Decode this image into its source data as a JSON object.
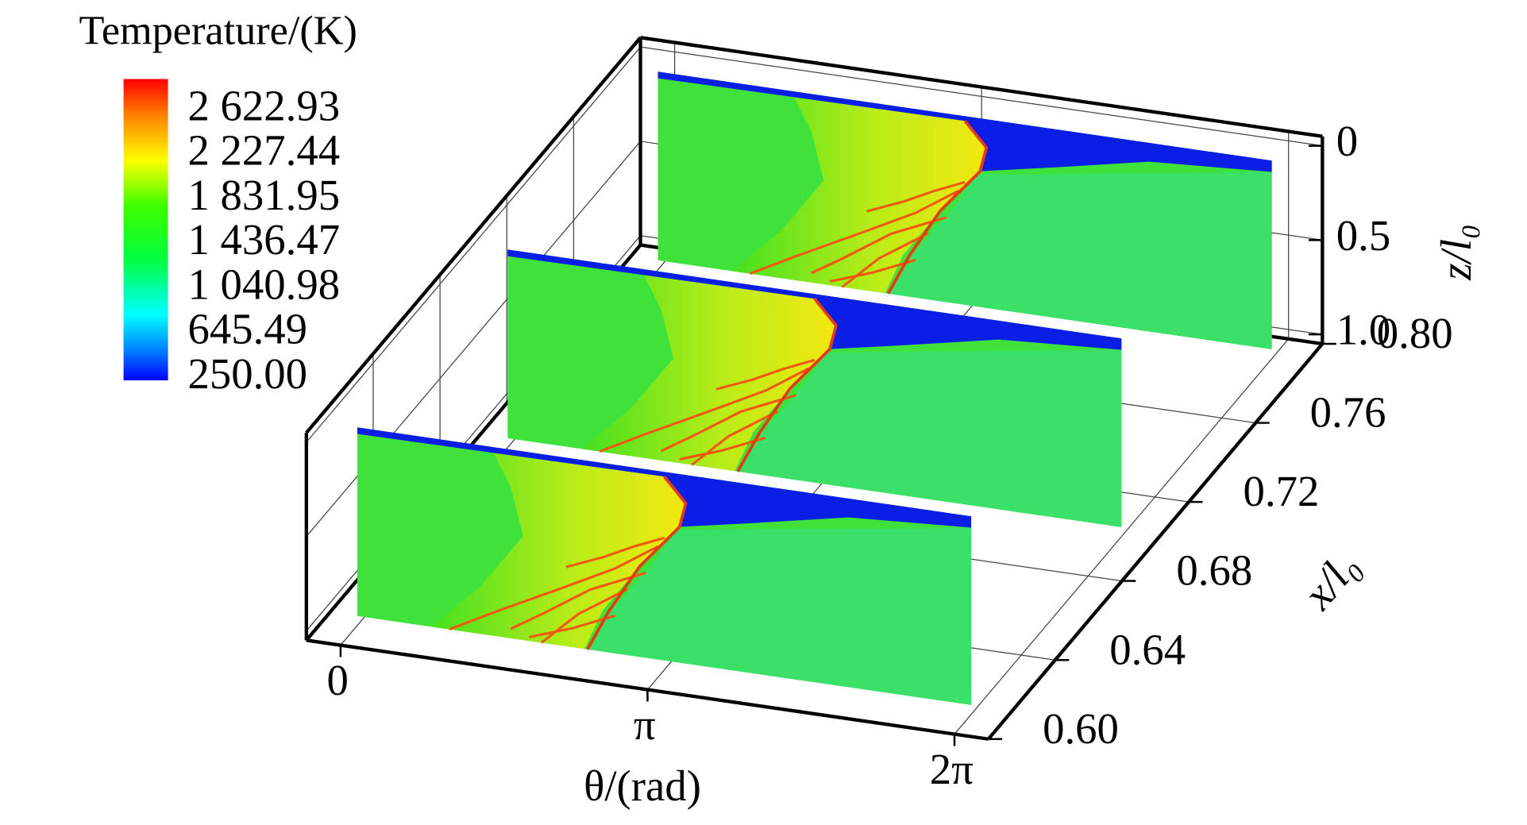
{
  "chart_data": {
    "type": "slices3d",
    "colorbar_title": "Temperature/(K)",
    "colorbar_lim": [
      230,
      2900
    ],
    "colorbar_ticks": [
      {
        "value": 2622.93,
        "label": "2 622.93"
      },
      {
        "value": 2227.44,
        "label": "2 227.44"
      },
      {
        "value": 1831.95,
        "label": "1 831.95"
      },
      {
        "value": 1436.47,
        "label": "1 436.47"
      },
      {
        "value": 1040.98,
        "label": "1 040.98"
      },
      645.49,
      {
        "value": 250,
        "label": "250.00"
      }
    ],
    "theta_label": "θ/(rad)",
    "thetalim": [
      -0.35,
      6.63
    ],
    "thetaticks": [
      0,
      {
        "value": 3.14159,
        "label": "π"
      },
      {
        "value": 6.28319,
        "label": "2π"
      }
    ],
    "x_label": "x/l₀",
    "xlim": [
      0.6,
      0.8
    ],
    "xticks": [
      {
        "value": 0.6,
        "label": "0.60"
      },
      0.64,
      0.68,
      0.72,
      0.76,
      {
        "value": 0.8,
        "label": "0.80"
      }
    ],
    "z_label": "z/l₀",
    "zlim": [
      -0.05,
      1.05
    ],
    "z_reversed": true,
    "zticks": [
      0,
      0.5,
      {
        "value": 1,
        "label": "1.0"
      }
    ],
    "slices": [
      {
        "x": 0.79
      },
      {
        "x": 0.7
      },
      {
        "x": 0.61
      }
    ],
    "grid": true
  }
}
